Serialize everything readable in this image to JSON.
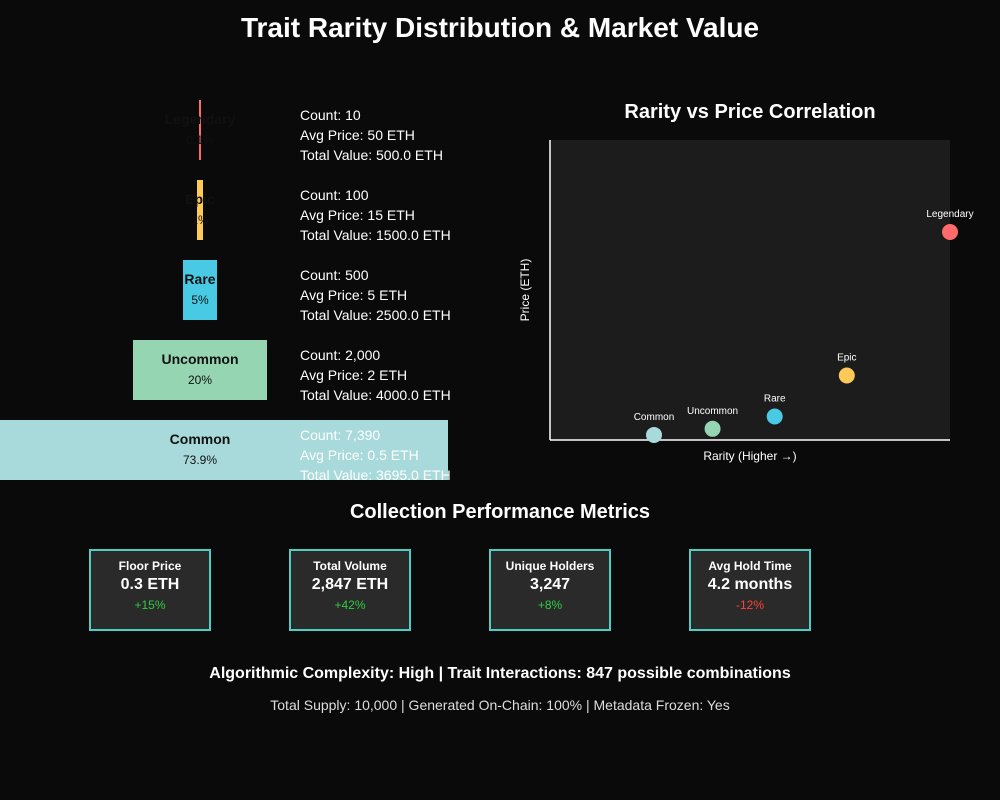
{
  "title": "Trait Rarity Distribution & Market Value",
  "tiers": [
    {
      "name": "Legendary",
      "percent_label": "0.1%",
      "share": 0.1,
      "color": "#ff6b6b",
      "count_line": "Count: 10",
      "price_line": "Avg Price: 50 ETH",
      "value_line": "Total Value: 500.0 ETH"
    },
    {
      "name": "Epic",
      "percent_label": "1%",
      "share": 1,
      "color": "#feca57",
      "count_line": "Count: 100",
      "price_line": "Avg Price: 15 ETH",
      "value_line": "Total Value: 1500.0 ETH"
    },
    {
      "name": "Rare",
      "percent_label": "5%",
      "share": 5,
      "color": "#48cae4",
      "count_line": "Count: 500",
      "price_line": "Avg Price: 5 ETH",
      "value_line": "Total Value: 2500.0 ETH"
    },
    {
      "name": "Uncommon",
      "percent_label": "20%",
      "share": 20,
      "color": "#95d5b2",
      "count_line": "Count: 2,000",
      "price_line": "Avg Price: 2 ETH",
      "value_line": "Total Value: 4000.0 ETH"
    },
    {
      "name": "Common",
      "percent_label": "73.9%",
      "share": 73.9,
      "color": "#a8dadc",
      "count_line": "Count: 7,390",
      "price_line": "Avg Price: 0.5 ETH",
      "value_line": "Total Value: 3695.0 ETH"
    }
  ],
  "chart_data": {
    "type": "scatter",
    "title": "Rarity vs Price Correlation",
    "xlabel": "Rarity (Higher →)",
    "ylabel": "Price (ETH)",
    "ylim": [
      0,
      60
    ],
    "grid": false,
    "points": [
      {
        "label": "Common",
        "x": 73.9,
        "y": 0.5,
        "color": "#a8dadc"
      },
      {
        "label": "Uncommon",
        "x": 20,
        "y": 2,
        "color": "#95d5b2"
      },
      {
        "label": "Rare",
        "x": 5,
        "y": 5,
        "color": "#48cae4"
      },
      {
        "label": "Epic",
        "x": 1,
        "y": 15,
        "color": "#feca57"
      },
      {
        "label": "Legendary",
        "x": 0.1,
        "y": 50,
        "color": "#ff6b6b"
      }
    ]
  },
  "metrics": {
    "title": "Collection Performance Metrics",
    "accent": "#4ecdc4",
    "cards": [
      {
        "label": "Floor Price",
        "value": "0.3 ETH",
        "change": "+15%",
        "trend": "up"
      },
      {
        "label": "Total Volume",
        "value": "2,847 ETH",
        "change": "+42%",
        "trend": "up"
      },
      {
        "label": "Unique Holders",
        "value": "3,247",
        "change": "+8%",
        "trend": "up"
      },
      {
        "label": "Avg Hold Time",
        "value": "4.2 months",
        "change": "-12%",
        "trend": "down"
      }
    ]
  },
  "footer": {
    "main": "Algorithmic Complexity: High | Trait Interactions: 847 possible combinations",
    "sub": "Total Supply: 10,000 | Generated On-Chain: 100% | Metadata Frozen: Yes"
  }
}
